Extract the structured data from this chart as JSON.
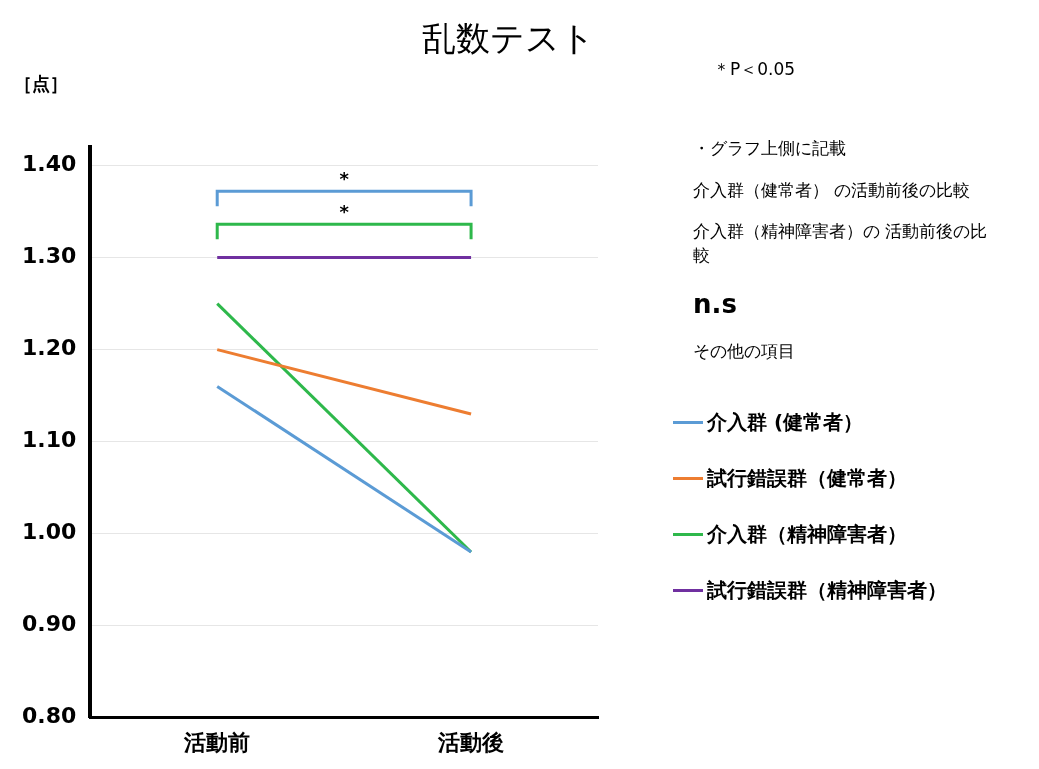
{
  "chart_data": {
    "type": "line",
    "title": "乱数テスト",
    "ylabel": "［点］",
    "categories": [
      "活動前",
      "活動後"
    ],
    "series": [
      {
        "name": "介入群 (健常者）",
        "color": "#5b9bd5",
        "values": [
          1.16,
          0.98
        ]
      },
      {
        "name": "試行錯誤群（健常者）",
        "color": "#ed7d31",
        "values": [
          1.2,
          1.13
        ]
      },
      {
        "name": "介入群（精神障害者）",
        "color": "#2eb84b",
        "values": [
          1.25,
          0.98
        ]
      },
      {
        "name": "試行錯誤群（精神障害者）",
        "color": "#7030a0",
        "values": [
          1.3,
          1.3
        ]
      }
    ],
    "ylim": [
      0.8,
      1.42
    ],
    "yticks": [
      {
        "value": 0.8,
        "label": "0.80"
      },
      {
        "value": 0.9,
        "label": "0.90"
      },
      {
        "value": 1.0,
        "label": "1.00"
      },
      {
        "value": 1.1,
        "label": "1.10"
      },
      {
        "value": 1.2,
        "label": "1.20"
      },
      {
        "value": 1.3,
        "label": "1.30"
      },
      {
        "value": 1.4,
        "label": "1.40"
      }
    ],
    "grid": "y",
    "legend": "right",
    "marker": "none",
    "line_style": "solid",
    "annotations": [
      "*",
      "*",
      "＊P＜0.05",
      "・グラフ上側に記載",
      "介入群（健常者） の活動前後の比較",
      "介入群（精神障害者）の 活動前後の比較",
      "n.s",
      "その他の項目"
    ]
  }
}
